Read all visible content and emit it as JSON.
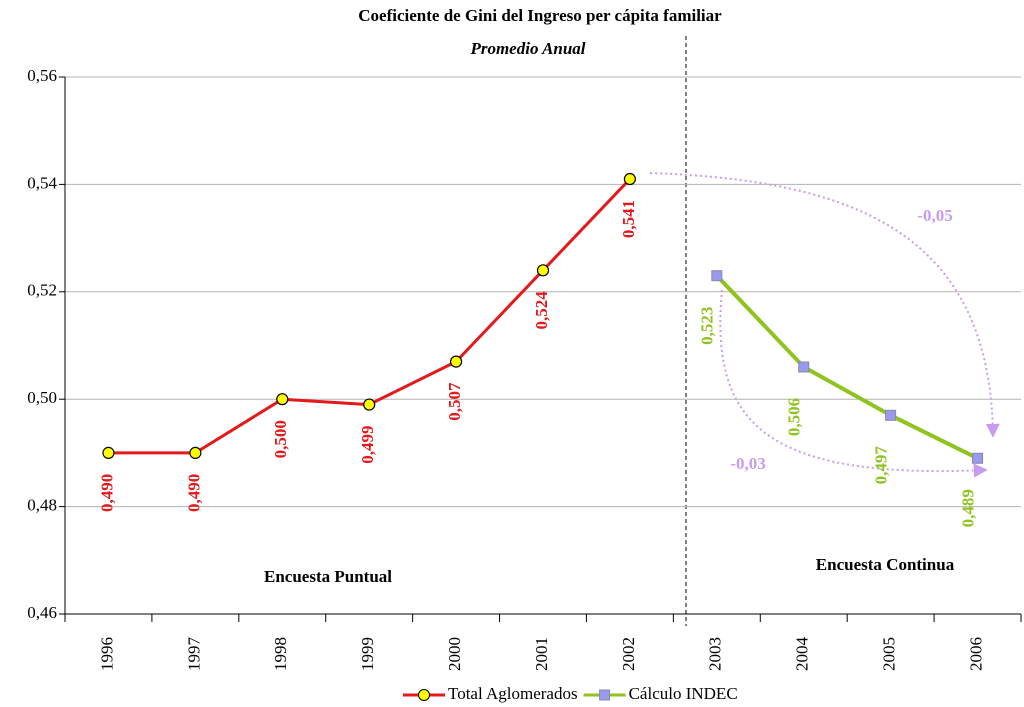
{
  "chart_data": {
    "type": "line",
    "title": "Coeficiente de Gini del Ingreso per cápita familiar",
    "subtitle": "Promedio Anual",
    "categories": [
      "1996",
      "1997",
      "1998",
      "1999",
      "2000",
      "2001",
      "2002",
      "2003",
      "2004",
      "2005",
      "2006"
    ],
    "series": [
      {
        "name": "Total Aglomerados",
        "color": "#e3191c",
        "marker_color": "#ffff00",
        "values": [
          0.49,
          0.49,
          0.5,
          0.499,
          0.507,
          0.524,
          0.541,
          null,
          null,
          null,
          null
        ],
        "value_labels": [
          "0,490",
          "0,490",
          "0,500",
          "0,499",
          "0,507",
          "0,524",
          "0,541",
          null,
          null,
          null,
          null
        ]
      },
      {
        "name": "Cálculo INDEC",
        "color": "#8fc31f",
        "marker_color": "#9999ee",
        "values": [
          null,
          null,
          null,
          null,
          null,
          null,
          null,
          0.523,
          0.506,
          0.497,
          0.489
        ],
        "value_labels": [
          null,
          null,
          null,
          null,
          null,
          null,
          null,
          "0,523",
          "0,506",
          "0,497",
          "0,489"
        ]
      }
    ],
    "ylim": [
      0.46,
      0.56
    ],
    "yticks": [
      {
        "value": 0.46,
        "label": "0,46"
      },
      {
        "value": 0.48,
        "label": "0,48"
      },
      {
        "value": 0.5,
        "label": "0,50"
      },
      {
        "value": 0.52,
        "label": "0,52"
      },
      {
        "value": 0.54,
        "label": "0,54"
      },
      {
        "value": 0.56,
        "label": "0,56"
      }
    ],
    "grid": true,
    "legend": "bottom",
    "annotations": [
      "-0,05",
      "-0,03",
      "Encuesta Puntual",
      "Encuesta Continua"
    ]
  }
}
